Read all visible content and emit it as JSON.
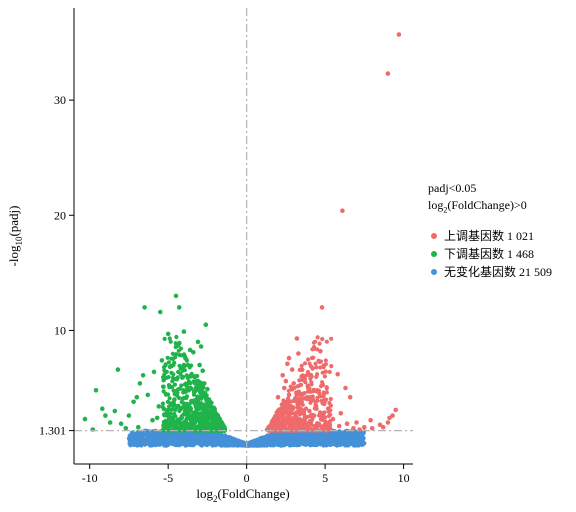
{
  "colors": {
    "up": "#EF6B6B",
    "down": "#21B34B",
    "nochange": "#4591D8"
  },
  "legend": {
    "title_line1": "padj<0.05",
    "title_line2_pre": "log",
    "title_line2_sub": "2",
    "title_line2_post": "(FoldChange)>0",
    "items": [
      {
        "key": "up",
        "label": "上调基因数",
        "count": "1 021"
      },
      {
        "key": "down",
        "label": "下调基因数",
        "count": "1 468"
      },
      {
        "key": "nochange",
        "label": "无变化基因数",
        "count": "21 509"
      }
    ]
  },
  "chart_data": {
    "type": "scatter",
    "xlabel_pre": "log",
    "xlabel_sub": "2",
    "xlabel_post": "(FoldChange)",
    "ylabel_pre": "-log",
    "ylabel_sub": "10",
    "ylabel_post": "(padj)",
    "xlim": [
      -11,
      10.6
    ],
    "ylim": [
      -1.6,
      38
    ],
    "x_ticks": [
      -10,
      -5,
      0,
      5,
      10
    ],
    "y_ticks": [
      1.301,
      10,
      20,
      30
    ],
    "y_tick_labels": [
      "1.301",
      "10",
      "20",
      "30"
    ],
    "threshold_y": 1.301,
    "threshold_x": 0,
    "series": [
      {
        "key": "up",
        "name": "上调基因数",
        "points": [
          [
            9.7,
            35.7
          ],
          [
            9.0,
            32.3
          ],
          [
            6.1,
            20.4
          ],
          [
            4.8,
            12.0
          ],
          [
            4.7,
            8.2
          ],
          [
            3.3,
            8.0
          ],
          [
            3.2,
            9.3
          ],
          [
            4.2,
            6.7
          ],
          [
            5.8,
            6.2
          ],
          [
            6.6,
            4.2
          ],
          [
            6.3,
            5.0
          ],
          [
            7.9,
            2.2
          ],
          [
            8.5,
            1.8
          ],
          [
            8.7,
            1.6
          ],
          [
            9.0,
            2.0
          ],
          [
            9.1,
            2.4
          ],
          [
            9.5,
            3.1
          ],
          [
            9.3,
            2.6
          ],
          [
            7.2,
            1.4
          ],
          [
            6.8,
            1.5
          ],
          [
            5.2,
            3.2
          ],
          [
            5.0,
            4.0
          ],
          [
            4.5,
            4.8
          ],
          [
            4.4,
            3.5
          ],
          [
            4.0,
            3.0
          ],
          [
            3.9,
            5.2
          ],
          [
            3.6,
            4.5
          ],
          [
            3.5,
            6.0
          ],
          [
            3.4,
            3.8
          ],
          [
            3.2,
            2.9
          ],
          [
            3.1,
            4.1
          ],
          [
            3.0,
            5.4
          ],
          [
            2.9,
            6.6
          ],
          [
            2.8,
            3.2
          ],
          [
            2.7,
            4.4
          ],
          [
            2.6,
            2.5
          ],
          [
            2.5,
            3.6
          ],
          [
            2.4,
            5.0
          ],
          [
            2.3,
            2.2
          ],
          [
            2.2,
            3.0
          ],
          [
            2.1,
            1.8
          ],
          [
            2.0,
            2.6
          ],
          [
            1.9,
            1.5
          ],
          [
            1.8,
            2.1
          ],
          [
            1.7,
            1.4
          ],
          [
            1.6,
            1.9
          ],
          [
            1.5,
            1.5
          ],
          [
            1.4,
            1.6
          ],
          [
            1.3,
            1.4
          ],
          [
            2.6,
            7.1
          ],
          [
            2.9,
            4.9
          ],
          [
            3.3,
            3.4
          ],
          [
            3.7,
            2.4
          ],
          [
            4.1,
            2.1
          ],
          [
            4.6,
            1.9
          ],
          [
            5.5,
            2.3
          ],
          [
            5.9,
            1.7
          ],
          [
            6.0,
            2.8
          ],
          [
            6.4,
            1.9
          ],
          [
            7.0,
            2.0
          ],
          [
            7.5,
            1.6
          ],
          [
            8.0,
            1.5
          ],
          [
            2.0,
            4.2
          ],
          [
            2.3,
            6.1
          ],
          [
            2.5,
            5.6
          ],
          [
            2.7,
            7.6
          ],
          [
            3.0,
            2.2
          ],
          [
            3.5,
            2.0
          ],
          [
            3.8,
            1.9
          ],
          [
            4.3,
            2.6
          ],
          [
            4.9,
            2.5
          ],
          [
            5.3,
            1.8
          ]
        ]
      },
      {
        "key": "down",
        "name": "下调基因数",
        "points": [
          [
            -4.5,
            13.0
          ],
          [
            -6.5,
            12.0
          ],
          [
            -5.5,
            11.6
          ],
          [
            -4.3,
            12.0
          ],
          [
            -2.6,
            10.5
          ],
          [
            -5.0,
            9.7
          ],
          [
            -4.0,
            9.9
          ],
          [
            -8.2,
            6.6
          ],
          [
            -9.6,
            4.8
          ],
          [
            -10.3,
            2.3
          ],
          [
            -9.2,
            3.2
          ],
          [
            -8.7,
            2.0
          ],
          [
            -8.0,
            1.9
          ],
          [
            -7.5,
            2.6
          ],
          [
            -7.2,
            3.8
          ],
          [
            -6.8,
            5.4
          ],
          [
            -6.3,
            4.4
          ],
          [
            -5.9,
            6.4
          ],
          [
            -5.6,
            3.4
          ],
          [
            -5.3,
            5.1
          ],
          [
            -5.1,
            2.8
          ],
          [
            -4.8,
            6.9
          ],
          [
            -4.6,
            4.0
          ],
          [
            -4.4,
            2.2
          ],
          [
            -4.1,
            5.9
          ],
          [
            -3.9,
            7.6
          ],
          [
            -3.8,
            3.6
          ],
          [
            -3.6,
            6.0
          ],
          [
            -3.5,
            2.6
          ],
          [
            -3.4,
            8.1
          ],
          [
            -3.3,
            4.7
          ],
          [
            -3.2,
            3.0
          ],
          [
            -3.1,
            5.6
          ],
          [
            -3.0,
            2.2
          ],
          [
            -2.9,
            4.2
          ],
          [
            -2.8,
            6.5
          ],
          [
            -2.7,
            3.3
          ],
          [
            -2.6,
            2.0
          ],
          [
            -2.5,
            4.9
          ],
          [
            -2.4,
            2.8
          ],
          [
            -2.3,
            3.6
          ],
          [
            -2.2,
            1.9
          ],
          [
            -2.1,
            2.6
          ],
          [
            -2.0,
            1.6
          ],
          [
            -1.9,
            2.2
          ],
          [
            -1.8,
            1.5
          ],
          [
            -1.7,
            1.8
          ],
          [
            -1.6,
            1.4
          ],
          [
            -1.5,
            1.6
          ],
          [
            -6.0,
            2.2
          ],
          [
            -6.9,
            1.6
          ],
          [
            -7.7,
            1.5
          ],
          [
            -9.8,
            1.4
          ],
          [
            -5.7,
            2.4
          ],
          [
            -4.9,
            2.0
          ],
          [
            -4.2,
            3.2
          ],
          [
            -3.7,
            4.8
          ],
          [
            -3.0,
            7.0
          ],
          [
            -2.7,
            5.4
          ],
          [
            -2.9,
            8.6
          ],
          [
            -3.1,
            9.0
          ],
          [
            -3.6,
            8.3
          ],
          [
            -4.0,
            7.0
          ],
          [
            -5.4,
            7.4
          ],
          [
            -6.6,
            6.1
          ],
          [
            -7.0,
            4.2
          ],
          [
            -8.4,
            3.0
          ],
          [
            -9.0,
            2.6
          ],
          [
            -2.4,
            4.0
          ],
          [
            -2.2,
            3.1
          ],
          [
            -2.0,
            2.4
          ]
        ]
      }
    ]
  }
}
